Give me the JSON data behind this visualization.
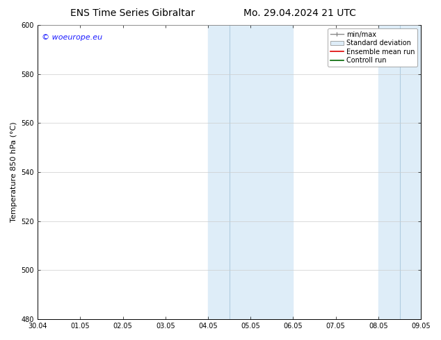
{
  "title_left": "ENS Time Series Gibraltar",
  "title_right": "Mo. 29.04.2024 21 UTC",
  "ylabel": "Temperature 850 hPa (°C)",
  "xlabel_ticks": [
    "30.04",
    "01.05",
    "02.05",
    "03.05",
    "04.05",
    "05.05",
    "06.05",
    "07.05",
    "08.05",
    "09.05"
  ],
  "ylim": [
    480,
    600
  ],
  "yticks": [
    480,
    500,
    520,
    540,
    560,
    580,
    600
  ],
  "xlim_min": 0,
  "xlim_max": 9,
  "shaded_bands": [
    {
      "xmin": 4.0,
      "xmax": 6.0,
      "sep": 4.5
    },
    {
      "xmin": 8.0,
      "xmax": 9.0,
      "sep": 8.5
    }
  ],
  "band_color": "#deedf8",
  "sep_line_color": "#b0cce0",
  "watermark": "© woeurope.eu",
  "watermark_color": "#1a1aff",
  "bg_color": "#ffffff",
  "plot_bg_color": "#ffffff",
  "grid_color": "#cccccc",
  "title_fontsize": 10,
  "tick_fontsize": 7,
  "label_fontsize": 8,
  "legend_fontsize": 7
}
